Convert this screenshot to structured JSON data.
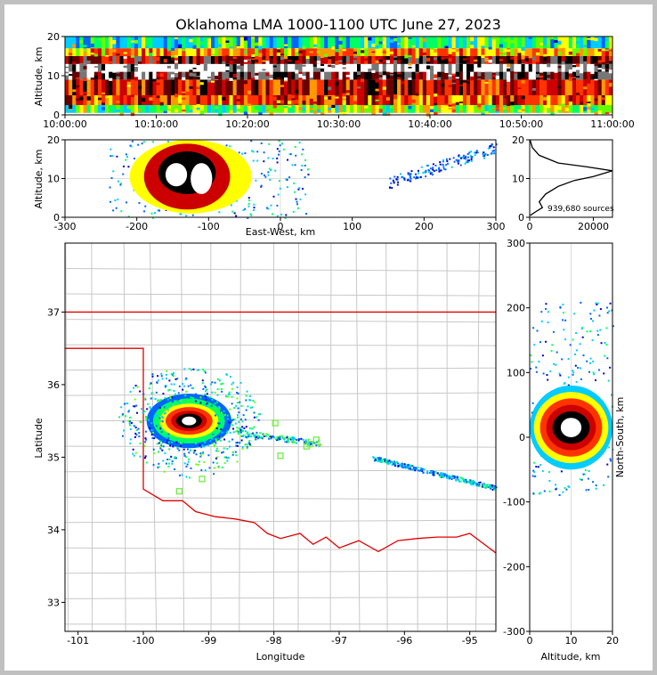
{
  "colors": {
    "background": "#c0c0c0",
    "axes": "#000000",
    "grid": "#dddddd",
    "county": "#c8c8c8",
    "state_border": "#e00000",
    "station": "#66ee33",
    "density_palette": [
      "#0000cc",
      "#0066ff",
      "#00ccff",
      "#00ff66",
      "#66ff00",
      "#ffff00",
      "#ff9900",
      "#ff3300",
      "#cc0000",
      "#660000",
      "#000000",
      "#777777",
      "#ffffff"
    ]
  },
  "chart_data": [
    {
      "id": "time_height",
      "type": "heatmap",
      "title": "Oklahoma LMA 1000-1100 UTC June 27, 2023",
      "ylabel": "Altitude, km",
      "xlim_label": [
        "10:00:00",
        "11:00:00"
      ],
      "ylim": [
        0,
        20
      ],
      "xticks": [
        "10:00:00",
        "10:10:00",
        "10:20:00",
        "10:30:00",
        "10:40:00",
        "10:50:00",
        "11:00:00"
      ],
      "yticks": [
        "0",
        "10",
        "20"
      ],
      "bands": [
        {
          "alt": [
            0.5,
            2.5
          ],
          "level": 4
        },
        {
          "alt": [
            2.5,
            5
          ],
          "level": 7
        },
        {
          "alt": [
            5,
            9
          ],
          "level": 8
        },
        {
          "alt": [
            9,
            11
          ],
          "level": 10
        },
        {
          "alt": [
            11,
            13
          ],
          "level": 12
        },
        {
          "alt": [
            13,
            15
          ],
          "level": 9
        },
        {
          "alt": [
            15,
            17
          ],
          "level": 6
        },
        {
          "alt": [
            17,
            20
          ],
          "level": 3
        }
      ]
    },
    {
      "id": "ew_altitude",
      "type": "heatmap",
      "xlabel": "East-West, km",
      "ylabel": "Altitude, km",
      "xlim": [
        -300,
        300
      ],
      "ylim": [
        0,
        20
      ],
      "xticks": [
        "-300",
        "-200",
        "-100",
        "0",
        "100",
        "200",
        "300"
      ],
      "yticks": [
        "0",
        "10",
        "20"
      ],
      "cores": [
        {
          "x": [
            -210,
            -40
          ],
          "z": [
            1,
            20
          ],
          "level": 5
        },
        {
          "x": [
            -190,
            -70
          ],
          "z": [
            2,
            19
          ],
          "level": 8
        },
        {
          "x": [
            -170,
            -90
          ],
          "z": [
            6,
            17
          ],
          "level": 10
        },
        {
          "x": [
            -160,
            -130
          ],
          "z": [
            8,
            14
          ],
          "level": 12
        },
        {
          "x": [
            -125,
            -95
          ],
          "z": [
            6,
            14
          ],
          "level": 12
        }
      ],
      "streamer": {
        "x": [
          150,
          300
        ],
        "z": [
          9,
          20
        ]
      }
    },
    {
      "id": "altitude_histogram",
      "type": "line",
      "xlim": [
        0,
        26000
      ],
      "ylim": [
        0,
        20
      ],
      "xticks": [
        "0",
        "20000"
      ],
      "yticks": [
        "0",
        "10",
        "20"
      ],
      "annotation": "939,680 sources",
      "x": [
        200,
        2000,
        4000,
        3000,
        5000,
        9000,
        14000,
        20000,
        26000,
        18000,
        9000,
        3000,
        800,
        100
      ],
      "y": [
        0.5,
        1.5,
        2.5,
        4,
        6,
        8,
        9.5,
        10.5,
        12,
        13,
        14,
        16,
        18,
        20
      ]
    },
    {
      "id": "plan_view",
      "type": "scatter",
      "xlabel": "Longitude",
      "ylabel": "Latitude",
      "xlim": [
        -101.2,
        -94.6
      ],
      "ylim": [
        32.6,
        37.95
      ],
      "xticks": [
        "-101",
        "-100",
        "-99",
        "-98",
        "-97",
        "-96",
        "-95"
      ],
      "yticks": [
        "33",
        "34",
        "35",
        "36",
        "37"
      ],
      "storm_center": [
        -99.3,
        35.5
      ],
      "stations": [
        {
          "lon": -97.98,
          "lat": 35.47
        },
        {
          "lon": -97.9,
          "lat": 35.02
        },
        {
          "lon": -97.5,
          "lat": 35.15
        },
        {
          "lon": -97.45,
          "lat": 35.18
        },
        {
          "lon": -97.35,
          "lat": 35.24
        },
        {
          "lon": -99.45,
          "lat": 34.53
        },
        {
          "lon": -99.1,
          "lat": 34.7
        }
      ]
    },
    {
      "id": "ns_altitude",
      "type": "heatmap",
      "xlabel": "Altitude, km",
      "ylabel": "North-South, km",
      "xlim": [
        0,
        20
      ],
      "ylim": [
        -300,
        300
      ],
      "xticks": [
        "0",
        "10",
        "20"
      ],
      "yticks": [
        "-300",
        "-200",
        "-100",
        "0",
        "100",
        "200",
        "300"
      ]
    }
  ]
}
